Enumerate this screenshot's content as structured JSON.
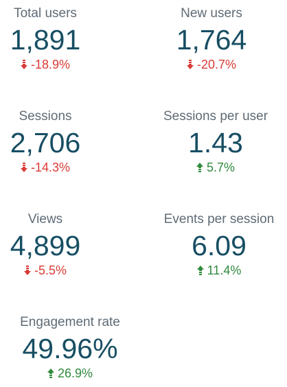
{
  "metrics": [
    {
      "label": "Total users",
      "value": "1,891",
      "change": "-18.9%",
      "direction": "down"
    },
    {
      "label": "New users",
      "value": "1,764",
      "change": "-20.7%",
      "direction": "down"
    },
    {
      "label": "Sessions",
      "value": "2,706",
      "change": "-14.3%",
      "direction": "down"
    },
    {
      "label": "Sessions per user",
      "value": "1.43",
      "change": "5.7%",
      "direction": "up"
    },
    {
      "label": "Views",
      "value": "4,899",
      "change": "-5.5%",
      "direction": "down"
    },
    {
      "label": "Events per session",
      "value": "6.09",
      "change": "11.4%",
      "direction": "up"
    },
    {
      "label": "Engagement rate",
      "value": "49.96%",
      "change": "26.9%",
      "direction": "up"
    }
  ],
  "colors": {
    "label": "#5f6b75",
    "value": "#174e63",
    "negative": "#d93b35",
    "positive": "#2f8a3c"
  },
  "icons": {
    "down": "arrow-down-icon",
    "up": "arrow-up-icon"
  }
}
